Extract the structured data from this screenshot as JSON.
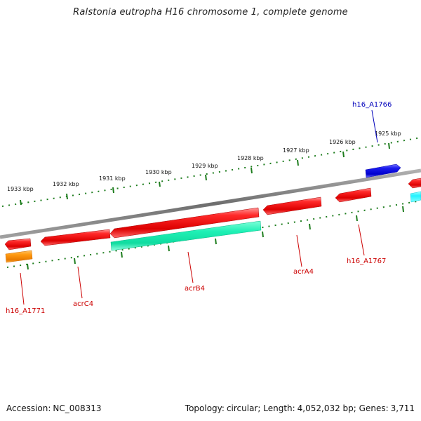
{
  "title": "Ralstonia eutropha H16 chromosome 1, complete genome",
  "colors": {
    "background": "#ffffff",
    "backbone": "#7a7a7a",
    "tick": "#1e7d1e",
    "gene_red": "#ee1111",
    "gene_cyan": "#11f0b8",
    "gene_blue": "#1111e0",
    "gene_orange": "#ff8c00",
    "label_red": "#cc0000",
    "label_blue": "#0000bb"
  },
  "scale": {
    "ticks": [
      "1933 kbp",
      "1932 kbp",
      "1931 kbp",
      "1930 kbp",
      "1929 kbp",
      "1928 kbp",
      "1927 kbp",
      "1926 kbp",
      "1925 kbp"
    ]
  },
  "genes": [
    {
      "name": "h16_A1771",
      "color": "red"
    },
    {
      "name": "acrC4",
      "color": "red"
    },
    {
      "name": "acrB4",
      "color": "red"
    },
    {
      "name": "acrA4",
      "color": "red"
    },
    {
      "name": "h16_A1767",
      "color": "red"
    },
    {
      "name": "h16_A1766",
      "color": "blue"
    }
  ],
  "footer": {
    "accession_label": "Accession:",
    "accession": "NC_008313",
    "topology_label": "Topology:",
    "topology": "circular;",
    "length_label": "Length:",
    "length": "4,052,032 bp;",
    "genes_label": "Genes:",
    "genes": "3,711"
  }
}
